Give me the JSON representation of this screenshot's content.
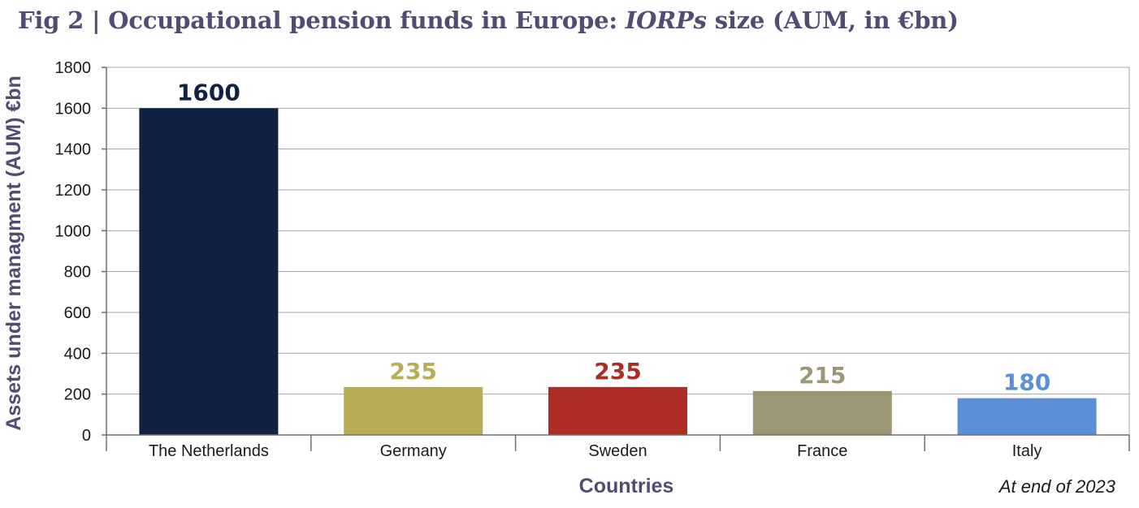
{
  "title": {
    "prefix": "Fig 2 | Occupational pension funds in Europe: ",
    "emphasis": "IORPs",
    "suffix": " size (AUM, in €bn)"
  },
  "note": "At end of 2023",
  "chart_data": {
    "type": "bar",
    "categories": [
      "The Netherlands",
      "Germany",
      "Sweden",
      "France",
      "Italy"
    ],
    "values": [
      1600,
      235,
      235,
      215,
      180
    ],
    "data_labels": [
      "1600",
      "235",
      "235",
      "215",
      "180"
    ],
    "bar_colors": [
      "#112142",
      "#b8ad55",
      "#ad2d25",
      "#9d9776",
      "#5b8fd6"
    ],
    "label_colors": [
      "#112142",
      "#b8ad55",
      "#ad2d25",
      "#9d9776",
      "#5b8fd6"
    ],
    "xlabel": "Countries",
    "ylabel": "Assets under managment (AUM) €bn",
    "ylim": [
      0,
      1800
    ],
    "yticks": [
      0,
      200,
      400,
      600,
      800,
      1000,
      1200,
      1400,
      1600,
      1800
    ],
    "grid": true,
    "legend": "none"
  },
  "colors": {
    "title": "#544a72",
    "axis_title": "#544a72",
    "grid": "#a6a6a6",
    "axis": "#6f6f6f"
  }
}
